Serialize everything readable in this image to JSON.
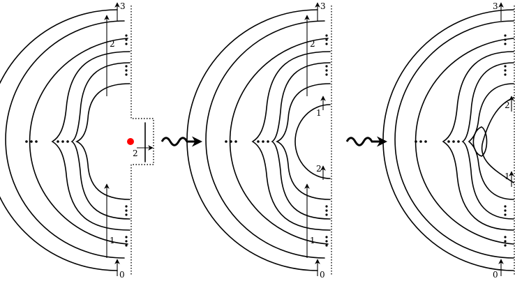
{
  "panels": [
    {
      "labels": {
        "top": "3",
        "upper": "2",
        "lower": "1",
        "bottom": "0",
        "notch": "2"
      },
      "marker_color": "#ff0000"
    },
    {
      "labels": {
        "top": "3",
        "upper": "2",
        "lower": "1",
        "bottom": "0",
        "inner_top": "1",
        "inner_bottom": "2"
      }
    },
    {
      "labels": {
        "top": "3",
        "right_upper": "2",
        "right_lower": "1",
        "bottom": "0"
      }
    }
  ],
  "transition_arrows": 2
}
